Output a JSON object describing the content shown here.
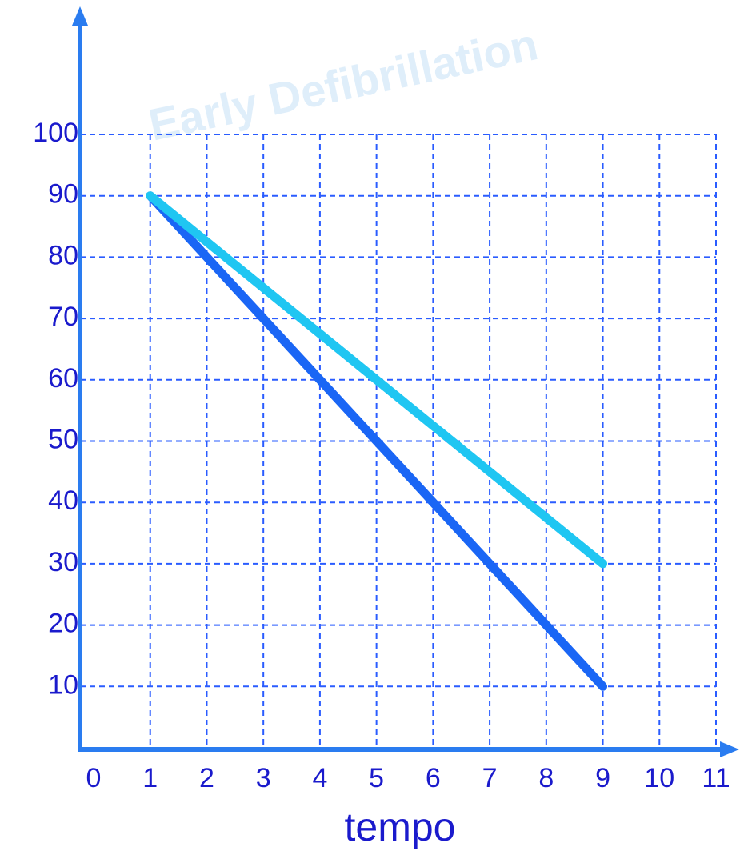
{
  "chart_data": {
    "type": "line",
    "watermark": "Early Defibrillation",
    "x_label": "tempo",
    "x": [
      1,
      9
    ],
    "series": [
      {
        "color": "#1a66f5",
        "values": [
          90,
          10
        ]
      },
      {
        "color": "#1fc6f2",
        "values": [
          90,
          30
        ]
      }
    ],
    "xlim": [
      0,
      11
    ],
    "xticks": [
      0,
      1,
      2,
      3,
      4,
      5,
      6,
      7,
      8,
      9,
      10,
      11
    ],
    "ylim": [
      0,
      100
    ],
    "yticks": [
      10,
      20,
      30,
      40,
      50,
      60,
      70,
      80,
      90,
      100
    ],
    "grid": true
  }
}
